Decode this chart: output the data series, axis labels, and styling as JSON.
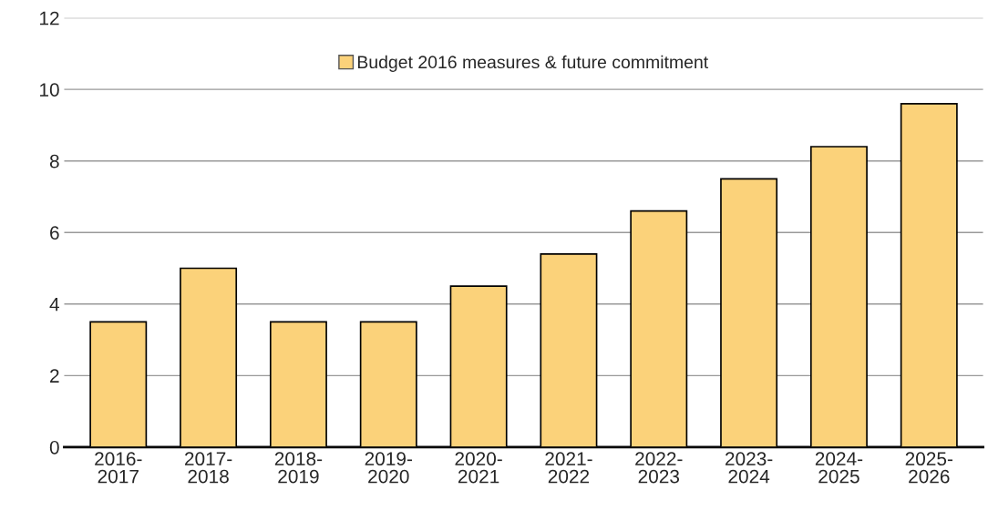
{
  "chart_data": {
    "type": "bar",
    "categories": [
      "2016-\n2017",
      "2017-\n2018",
      "2018-\n2019",
      "2019-\n2020",
      "2020-\n2021",
      "2021-\n2022",
      "2022-\n2023",
      "2023-\n2024",
      "2024-\n2025",
      "2025-\n2026"
    ],
    "series": [
      {
        "name": "Budget 2016 measures & future commitment",
        "color": "#fbd27a",
        "values": [
          3.5,
          5.0,
          3.5,
          3.5,
          4.5,
          5.4,
          6.6,
          7.5,
          8.4,
          9.6
        ]
      }
    ],
    "ylim": [
      0,
      12
    ],
    "yticks": [
      0,
      2,
      4,
      6,
      8,
      10,
      12
    ],
    "grid": "y",
    "legend": "top"
  }
}
